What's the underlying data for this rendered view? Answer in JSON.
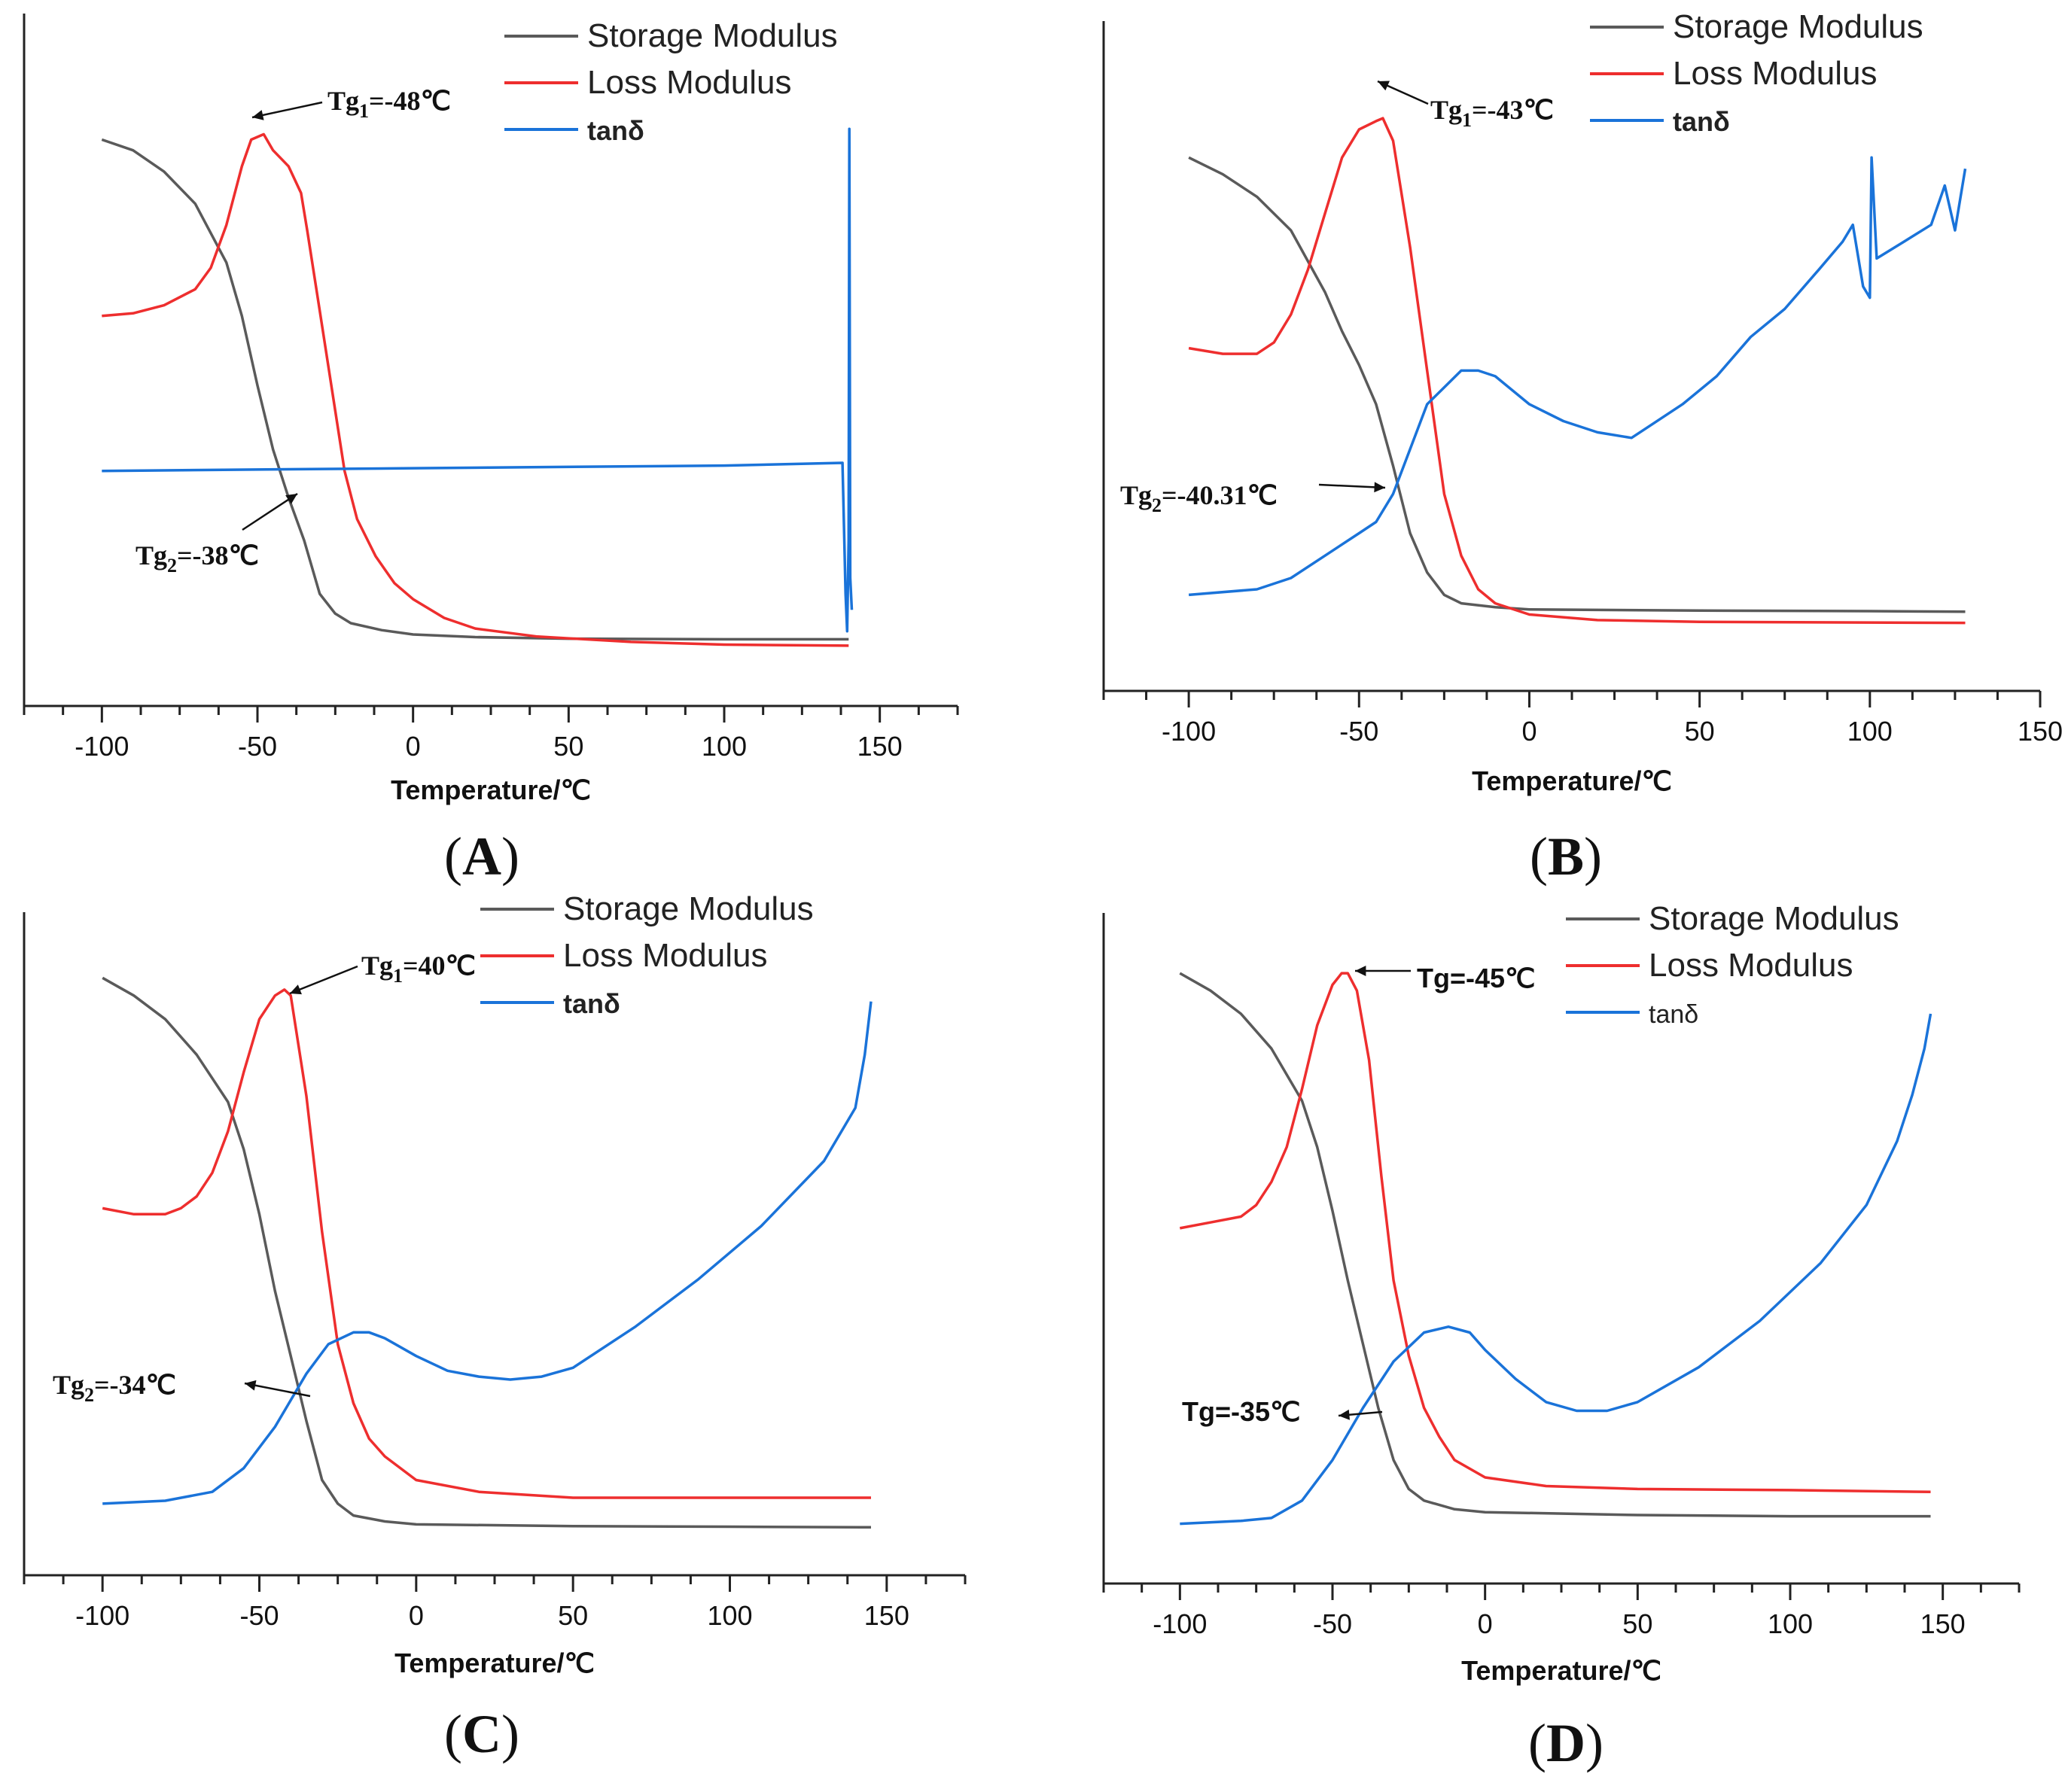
{
  "colors": {
    "storage": "#5a5a5a",
    "loss": "#ee2e2e",
    "tan": "#1a73d9"
  },
  "chart_data": [
    {
      "id": "A",
      "type": "line",
      "panel_label": "A",
      "xlabel": "Temperature/℃",
      "xlim": [
        -125,
        175
      ],
      "xticks": [
        -100,
        -50,
        0,
        50,
        100,
        150
      ],
      "legend": [
        "Storage Modulus",
        "Loss Modulus",
        "tanδ"
      ],
      "legend_position": "top-right",
      "ylabel": "",
      "yticks": "none",
      "annotations": [
        {
          "main": "Tg",
          "sub": "1",
          "rest": "=-48℃"
        },
        {
          "main": "Tg",
          "sub": "2",
          "rest": "=-38℃"
        }
      ],
      "series": [
        {
          "name": "Storage Modulus",
          "x": [
            -100,
            -90,
            -80,
            -70,
            -60,
            -55,
            -50,
            -45,
            -40,
            -35,
            -30,
            -25,
            -20,
            -10,
            0,
            20,
            50,
            100,
            140
          ],
          "y": [
            0.95,
            0.93,
            0.89,
            0.83,
            0.72,
            0.62,
            0.49,
            0.37,
            0.28,
            0.2,
            0.1,
            0.063,
            0.045,
            0.032,
            0.024,
            0.019,
            0.016,
            0.015,
            0.015
          ]
        },
        {
          "name": "Loss Modulus",
          "x": [
            -100,
            -90,
            -80,
            -70,
            -65,
            -60,
            -55,
            -52,
            -48,
            -45,
            -40,
            -36,
            -34,
            -30,
            -26,
            -22,
            -18,
            -12,
            -6,
            0,
            10,
            20,
            40,
            70,
            100,
            140
          ],
          "y": [
            0.62,
            0.625,
            0.64,
            0.67,
            0.71,
            0.79,
            0.9,
            0.95,
            0.96,
            0.93,
            0.9,
            0.85,
            0.78,
            0.63,
            0.48,
            0.33,
            0.24,
            0.17,
            0.12,
            0.09,
            0.055,
            0.035,
            0.02,
            0.01,
            0.005,
            0.003
          ]
        },
        {
          "name": "tanδ",
          "x": [
            -100,
            0,
            100,
            138,
            139,
            139.5,
            140,
            140.2,
            140.5,
            141
          ],
          "y": [
            0.33,
            0.335,
            0.34,
            0.345,
            0.1,
            0.03,
            0.2,
            0.97,
            0.13,
            0.07
          ]
        }
      ]
    },
    {
      "id": "B",
      "type": "line",
      "panel_label": "B",
      "xlabel": "Temperature/℃",
      "xlim": [
        -125,
        150
      ],
      "xticks": [
        -100,
        -50,
        0,
        50,
        100,
        150
      ],
      "legend": [
        "Storage Modulus",
        "Loss Modulus",
        "tanδ"
      ],
      "legend_position": "top-right",
      "ylabel": "",
      "yticks": "none",
      "annotations": [
        {
          "main": "Tg",
          "sub": "1",
          "rest": "=-43℃"
        },
        {
          "main": "Tg",
          "sub": "2",
          "rest": "=-40.31℃"
        }
      ],
      "series": [
        {
          "name": "Storage Modulus",
          "x": [
            -100,
            -90,
            -80,
            -70,
            -60,
            -55,
            -50,
            -45,
            -40,
            -35,
            -30,
            -25,
            -20,
            -10,
            0,
            50,
            100,
            128
          ],
          "y": [
            0.86,
            0.83,
            0.79,
            0.73,
            0.62,
            0.55,
            0.49,
            0.42,
            0.31,
            0.19,
            0.12,
            0.08,
            0.065,
            0.058,
            0.054,
            0.052,
            0.051,
            0.05
          ]
        },
        {
          "name": "Loss Modulus",
          "x": [
            -100,
            -90,
            -80,
            -75,
            -70,
            -65,
            -60,
            -55,
            -50,
            -45,
            -43,
            -40,
            -35,
            -30,
            -25,
            -20,
            -15,
            -10,
            0,
            20,
            50,
            128
          ],
          "y": [
            0.52,
            0.51,
            0.51,
            0.53,
            0.58,
            0.66,
            0.76,
            0.86,
            0.91,
            0.925,
            0.93,
            0.89,
            0.7,
            0.48,
            0.26,
            0.15,
            0.09,
            0.065,
            0.045,
            0.035,
            0.032,
            0.03
          ]
        },
        {
          "name": "tanδ",
          "x": [
            -100,
            -80,
            -70,
            -60,
            -50,
            -45,
            -40,
            -35,
            -30,
            -20,
            -15,
            -10,
            0,
            10,
            20,
            30,
            35,
            45,
            55,
            65,
            75,
            85,
            92,
            95,
            98,
            100,
            100.5,
            102,
            110,
            118,
            122,
            125,
            128
          ],
          "y": [
            0.08,
            0.09,
            0.11,
            0.15,
            0.19,
            0.21,
            0.26,
            0.34,
            0.42,
            0.48,
            0.48,
            0.47,
            0.42,
            0.39,
            0.37,
            0.36,
            0.38,
            0.42,
            0.47,
            0.54,
            0.59,
            0.66,
            0.71,
            0.74,
            0.63,
            0.61,
            0.86,
            0.68,
            0.71,
            0.74,
            0.81,
            0.73,
            0.84
          ]
        }
      ]
    },
    {
      "id": "C",
      "type": "line",
      "panel_label": "C",
      "xlabel": "Temperature/℃",
      "xlim": [
        -125,
        175
      ],
      "xticks": [
        -100,
        -50,
        0,
        50,
        100,
        150
      ],
      "legend": [
        "Storage Modulus",
        "Loss Modulus",
        "tanδ"
      ],
      "legend_position": "top-right",
      "ylabel": "",
      "yticks": "none",
      "annotations": [
        {
          "main": "Tg",
          "sub": "1",
          "rest": "=40℃"
        },
        {
          "main": "Tg",
          "sub": "2",
          "rest": "=-34℃"
        }
      ],
      "series": [
        {
          "name": "Storage Modulus",
          "x": [
            -100,
            -90,
            -80,
            -70,
            -60,
            -55,
            -50,
            -45,
            -40,
            -35,
            -30,
            -25,
            -20,
            -10,
            0,
            50,
            100,
            145
          ],
          "y": [
            0.95,
            0.92,
            0.88,
            0.82,
            0.74,
            0.66,
            0.55,
            0.42,
            0.31,
            0.2,
            0.1,
            0.06,
            0.04,
            0.03,
            0.025,
            0.022,
            0.021,
            0.02
          ]
        },
        {
          "name": "Loss Modulus",
          "x": [
            -100,
            -90,
            -80,
            -75,
            -70,
            -65,
            -60,
            -55,
            -50,
            -45,
            -42,
            -40,
            -35,
            -30,
            -25,
            -20,
            -15,
            -10,
            0,
            20,
            50,
            100,
            145
          ],
          "y": [
            0.56,
            0.55,
            0.55,
            0.56,
            0.58,
            0.62,
            0.69,
            0.79,
            0.88,
            0.92,
            0.93,
            0.92,
            0.75,
            0.52,
            0.33,
            0.23,
            0.17,
            0.14,
            0.1,
            0.08,
            0.07,
            0.07,
            0.07
          ]
        },
        {
          "name": "tanδ",
          "x": [
            -100,
            -80,
            -65,
            -55,
            -45,
            -35,
            -28,
            -20,
            -15,
            -10,
            0,
            10,
            20,
            30,
            40,
            50,
            70,
            90,
            110,
            130,
            140,
            143,
            145
          ],
          "y": [
            0.06,
            0.065,
            0.08,
            0.12,
            0.19,
            0.28,
            0.33,
            0.35,
            0.35,
            0.34,
            0.31,
            0.285,
            0.275,
            0.27,
            0.275,
            0.29,
            0.36,
            0.44,
            0.53,
            0.64,
            0.73,
            0.82,
            0.91
          ]
        }
      ]
    },
    {
      "id": "D",
      "type": "line",
      "panel_label": "D",
      "xlabel": "Temperature/℃",
      "xlim": [
        -125,
        175
      ],
      "xticks": [
        -100,
        -50,
        0,
        50,
        100,
        150
      ],
      "legend": [
        "Storage Modulus",
        "Loss Modulus",
        "tanδ"
      ],
      "legend_position": "top-right",
      "ylabel": "",
      "yticks": "none",
      "annotations": [
        {
          "main": "Tg=-45℃",
          "sub": "",
          "rest": ""
        },
        {
          "main": "Tg=-35℃",
          "sub": "",
          "rest": ""
        }
      ],
      "series": [
        {
          "name": "Storage Modulus",
          "x": [
            -100,
            -90,
            -80,
            -70,
            -60,
            -55,
            -50,
            -45,
            -40,
            -35,
            -30,
            -25,
            -20,
            -10,
            0,
            50,
            100,
            146
          ],
          "y": [
            0.97,
            0.94,
            0.9,
            0.84,
            0.75,
            0.67,
            0.56,
            0.44,
            0.33,
            0.22,
            0.13,
            0.08,
            0.06,
            0.045,
            0.04,
            0.035,
            0.033,
            0.033
          ]
        },
        {
          "name": "Loss Modulus",
          "x": [
            -100,
            -90,
            -80,
            -75,
            -70,
            -65,
            -60,
            -55,
            -50,
            -47,
            -45,
            -42,
            -38,
            -34,
            -30,
            -25,
            -20,
            -15,
            -10,
            0,
            20,
            50,
            100,
            146
          ],
          "y": [
            0.53,
            0.54,
            0.55,
            0.57,
            0.61,
            0.67,
            0.77,
            0.88,
            0.95,
            0.97,
            0.97,
            0.94,
            0.82,
            0.62,
            0.44,
            0.31,
            0.22,
            0.17,
            0.13,
            0.1,
            0.085,
            0.08,
            0.078,
            0.075
          ]
        },
        {
          "name": "tanδ",
          "x": [
            -100,
            -80,
            -70,
            -60,
            -50,
            -40,
            -30,
            -20,
            -12,
            -5,
            0,
            10,
            20,
            30,
            40,
            50,
            70,
            90,
            110,
            125,
            135,
            140,
            144,
            146
          ],
          "y": [
            0.02,
            0.025,
            0.03,
            0.06,
            0.13,
            0.22,
            0.3,
            0.35,
            0.36,
            0.35,
            0.32,
            0.27,
            0.23,
            0.215,
            0.215,
            0.23,
            0.29,
            0.37,
            0.47,
            0.57,
            0.68,
            0.76,
            0.84,
            0.9
          ]
        }
      ]
    }
  ]
}
